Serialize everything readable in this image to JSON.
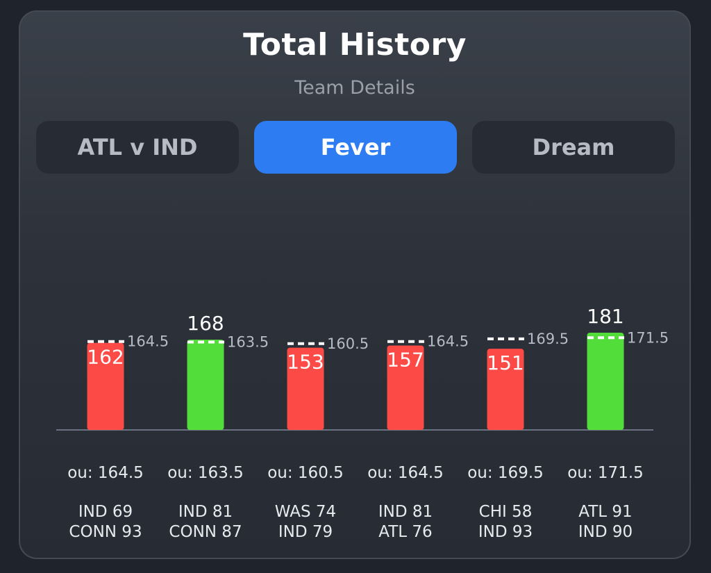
{
  "header": {
    "title": "Total History",
    "subtitle": "Team Details"
  },
  "tabs": [
    {
      "label": "ATL v IND",
      "active": false
    },
    {
      "label": "Fever",
      "active": true
    },
    {
      "label": "Dream",
      "active": false
    }
  ],
  "colors": {
    "over": "#53dd3a",
    "under": "#fc4a47",
    "active_tab": "#2e7cf2",
    "line": "#ffffff"
  },
  "chart_data": {
    "type": "bar",
    "categories": [
      "IND 69 CONN 93",
      "IND 81 CONN 87",
      "WAS 74 IND 79",
      "IND 81 ATL 76",
      "CHI 58 IND 93",
      "ATL 91 IND 90"
    ],
    "values": [
      162,
      168,
      153,
      157,
      151,
      181
    ],
    "ou_lines": [
      164.5,
      163.5,
      160.5,
      164.5,
      169.5,
      171.5
    ],
    "ou_labels": [
      "ou: 164.5",
      "ou: 163.5",
      "ou: 160.5",
      "ou: 164.5",
      "ou: 169.5",
      "ou: 171.5"
    ],
    "matchups": [
      [
        "IND 69",
        "CONN 93"
      ],
      [
        "IND 81",
        "CONN 87"
      ],
      [
        "WAS 74",
        "IND 79"
      ],
      [
        "IND 81",
        "ATL 76"
      ],
      [
        "CHI 58",
        "IND 93"
      ],
      [
        "ATL 91",
        "IND 90"
      ]
    ],
    "result": [
      "under",
      "over",
      "under",
      "under",
      "under",
      "over"
    ],
    "grid": false,
    "legend": "none"
  }
}
